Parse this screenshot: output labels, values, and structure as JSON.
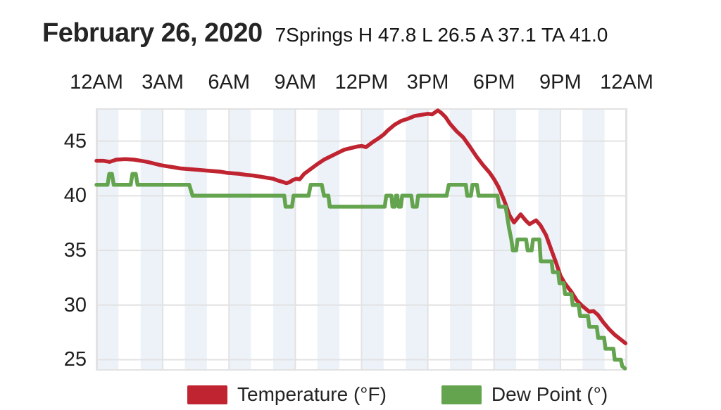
{
  "header": {
    "title": "February 26, 2020",
    "subtitle": "7Springs H 47.8 L 26.5 A 37.1 TA 41.0",
    "stats": {
      "station": "7Springs",
      "high": "47.8",
      "low": "26.5",
      "average": "37.1",
      "ta": "41.0"
    }
  },
  "chart_data": {
    "type": "line",
    "title": "February 26, 2020",
    "subtitle": "7Springs H 47.8 L 26.5 A 37.1 TA 41.0",
    "xlabel": "",
    "ylabel": "",
    "x_unit": "hours since 12AM",
    "x_range_hours": [
      0,
      24
    ],
    "x_tick_hours": [
      0,
      3,
      6,
      9,
      12,
      15,
      18,
      21,
      24
    ],
    "x_tick_labels": [
      "12AM",
      "3AM",
      "6AM",
      "9AM",
      "12PM",
      "3PM",
      "6PM",
      "9PM",
      "12AM"
    ],
    "y_ticks": [
      25,
      30,
      35,
      40,
      45
    ],
    "ylim": [
      24,
      48
    ],
    "grid": true,
    "band_stripes": "alternating 1-hour vertical bands, even hours shaded",
    "legend_position": "bottom",
    "colors": {
      "band": "#edf2f9",
      "grid": "#e2e2e2",
      "text": "#1e1e1e",
      "temperature": "#bf2430",
      "dew_point": "#64a44e"
    },
    "series": [
      {
        "id": "temperature",
        "name": "Temperature (°F)",
        "color": "#bf2430",
        "points": [
          [
            0,
            43.2
          ],
          [
            0.3,
            43.2
          ],
          [
            0.6,
            43.1
          ],
          [
            0.9,
            43.3
          ],
          [
            1.3,
            43.35
          ],
          [
            1.7,
            43.3
          ],
          [
            2,
            43.2
          ],
          [
            2.3,
            43.1
          ],
          [
            2.6,
            42.95
          ],
          [
            2.9,
            42.8
          ],
          [
            3.2,
            42.7
          ],
          [
            3.5,
            42.6
          ],
          [
            3.8,
            42.5
          ],
          [
            4.1,
            42.45
          ],
          [
            4.4,
            42.4
          ],
          [
            4.7,
            42.35
          ],
          [
            5,
            42.3
          ],
          [
            5.3,
            42.25
          ],
          [
            5.6,
            42.2
          ],
          [
            5.9,
            42.1
          ],
          [
            6.2,
            42.05
          ],
          [
            6.5,
            42
          ],
          [
            6.8,
            41.9
          ],
          [
            7.1,
            41.85
          ],
          [
            7.4,
            41.75
          ],
          [
            7.7,
            41.65
          ],
          [
            8,
            41.55
          ],
          [
            8.2,
            41.4
          ],
          [
            8.45,
            41.25
          ],
          [
            8.6,
            41.15
          ],
          [
            8.75,
            41.25
          ],
          [
            8.9,
            41.45
          ],
          [
            9.05,
            41.55
          ],
          [
            9.2,
            41.5
          ],
          [
            9.4,
            42
          ],
          [
            9.7,
            42.45
          ],
          [
            10,
            42.9
          ],
          [
            10.3,
            43.3
          ],
          [
            10.6,
            43.6
          ],
          [
            10.9,
            43.9
          ],
          [
            11.2,
            44.2
          ],
          [
            11.5,
            44.35
          ],
          [
            11.8,
            44.5
          ],
          [
            12,
            44.55
          ],
          [
            12.2,
            44.45
          ],
          [
            12.5,
            44.9
          ],
          [
            12.8,
            45.3
          ],
          [
            13,
            45.6
          ],
          [
            13.2,
            46
          ],
          [
            13.5,
            46.5
          ],
          [
            13.8,
            46.85
          ],
          [
            14.1,
            47.05
          ],
          [
            14.4,
            47.3
          ],
          [
            14.7,
            47.4
          ],
          [
            15,
            47.5
          ],
          [
            15.2,
            47.45
          ],
          [
            15.45,
            47.8
          ],
          [
            15.6,
            47.6
          ],
          [
            15.8,
            47.2
          ],
          [
            16,
            46.6
          ],
          [
            16.3,
            45.9
          ],
          [
            16.6,
            45.35
          ],
          [
            16.9,
            44.5
          ],
          [
            17.2,
            43.6
          ],
          [
            17.5,
            42.8
          ],
          [
            17.8,
            42.1
          ],
          [
            18,
            41.5
          ],
          [
            18.2,
            40.8
          ],
          [
            18.45,
            39.6
          ],
          [
            18.7,
            38.2
          ],
          [
            18.9,
            37.55
          ],
          [
            19.2,
            38.3
          ],
          [
            19.45,
            37.7
          ],
          [
            19.6,
            37.4
          ],
          [
            19.9,
            37.75
          ],
          [
            20.1,
            37.3
          ],
          [
            20.35,
            36.4
          ],
          [
            20.6,
            35
          ],
          [
            20.8,
            33.9
          ],
          [
            21,
            32.7
          ],
          [
            21.2,
            32
          ],
          [
            21.5,
            31.2
          ],
          [
            21.75,
            30.4
          ],
          [
            22,
            29.9
          ],
          [
            22.3,
            29.4
          ],
          [
            22.5,
            29.45
          ],
          [
            22.7,
            29.1
          ],
          [
            22.95,
            28.4
          ],
          [
            23.2,
            27.8
          ],
          [
            23.45,
            27.3
          ],
          [
            23.7,
            26.9
          ],
          [
            23.95,
            26.5
          ]
        ]
      },
      {
        "id": "dew-point",
        "name": "Dew Point (°)",
        "color": "#64a44e",
        "points": [
          [
            0,
            41
          ],
          [
            0.5,
            41
          ],
          [
            0.58,
            42
          ],
          [
            0.7,
            42
          ],
          [
            0.78,
            41
          ],
          [
            1.55,
            41
          ],
          [
            1.63,
            42
          ],
          [
            1.78,
            42
          ],
          [
            1.86,
            41
          ],
          [
            4.2,
            41
          ],
          [
            4.35,
            40
          ],
          [
            8.5,
            40
          ],
          [
            8.56,
            39
          ],
          [
            8.85,
            39
          ],
          [
            8.92,
            40
          ],
          [
            9.6,
            40
          ],
          [
            9.7,
            41
          ],
          [
            10.2,
            41
          ],
          [
            10.3,
            40
          ],
          [
            10.5,
            40
          ],
          [
            10.56,
            39
          ],
          [
            13.05,
            39
          ],
          [
            13.12,
            40
          ],
          [
            13.35,
            40
          ],
          [
            13.4,
            39
          ],
          [
            13.5,
            39
          ],
          [
            13.56,
            40
          ],
          [
            13.62,
            40
          ],
          [
            13.68,
            39
          ],
          [
            13.78,
            39
          ],
          [
            13.84,
            40
          ],
          [
            14.25,
            40
          ],
          [
            14.32,
            39
          ],
          [
            14.5,
            39
          ],
          [
            14.56,
            40
          ],
          [
            15.85,
            40
          ],
          [
            15.95,
            41
          ],
          [
            16.72,
            41
          ],
          [
            16.78,
            40
          ],
          [
            16.95,
            40
          ],
          [
            17.02,
            41
          ],
          [
            17.22,
            41
          ],
          [
            17.3,
            40
          ],
          [
            18.15,
            40
          ],
          [
            18.22,
            39
          ],
          [
            18.52,
            39
          ],
          [
            18.6,
            38
          ],
          [
            18.68,
            37
          ],
          [
            18.78,
            36
          ],
          [
            18.85,
            35
          ],
          [
            19,
            35
          ],
          [
            19.06,
            36
          ],
          [
            19.45,
            36
          ],
          [
            19.52,
            35
          ],
          [
            19.7,
            35
          ],
          [
            19.76,
            36
          ],
          [
            20.05,
            36
          ],
          [
            20.08,
            35
          ],
          [
            20.11,
            34
          ],
          [
            20.6,
            34
          ],
          [
            20.66,
            33
          ],
          [
            20.9,
            33
          ],
          [
            20.96,
            32
          ],
          [
            21.15,
            32
          ],
          [
            21.21,
            31
          ],
          [
            21.5,
            31
          ],
          [
            21.56,
            30
          ],
          [
            21.83,
            30
          ],
          [
            21.89,
            29
          ],
          [
            22.25,
            29
          ],
          [
            22.31,
            28
          ],
          [
            22.65,
            28
          ],
          [
            22.71,
            27
          ],
          [
            22.98,
            27
          ],
          [
            23.04,
            26
          ],
          [
            23.4,
            26
          ],
          [
            23.46,
            25
          ],
          [
            23.74,
            25
          ],
          [
            23.8,
            24.4
          ],
          [
            23.92,
            24.2
          ]
        ]
      }
    ]
  }
}
